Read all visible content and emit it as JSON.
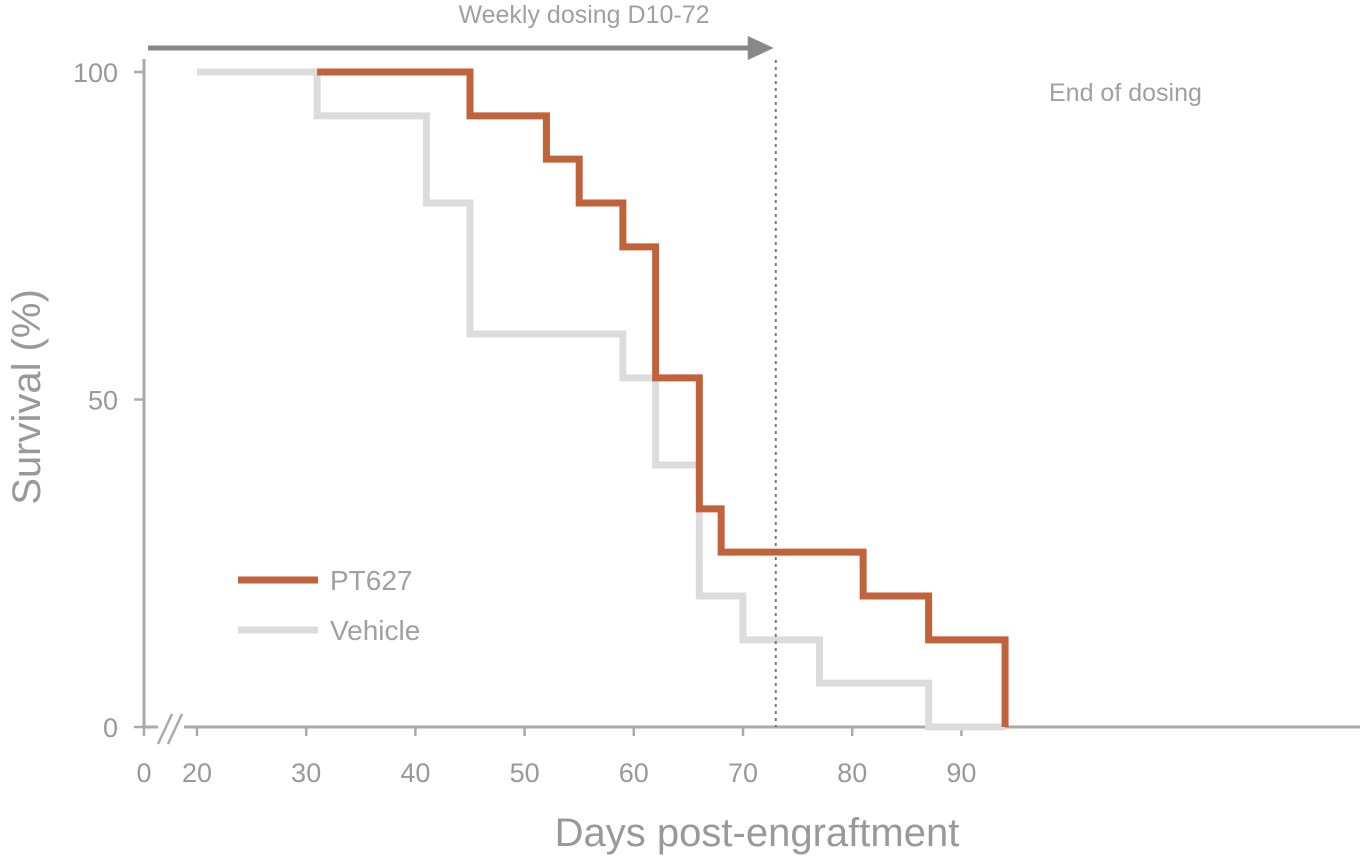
{
  "chart_data": {
    "type": "line",
    "subtype": "kaplan-meier step",
    "title": "",
    "xlabel": "Days post-engraftment",
    "ylabel": "Survival (%)",
    "xlim": [
      20,
      95
    ],
    "ylim": [
      0,
      100
    ],
    "x_axis_break": true,
    "x_ticks": [
      {
        "value": 0,
        "label": "0"
      },
      {
        "value": 20,
        "label": "20"
      },
      {
        "value": 30,
        "label": "30"
      },
      {
        "value": 40,
        "label": "40"
      },
      {
        "value": 50,
        "label": "50"
      },
      {
        "value": 60,
        "label": "60"
      },
      {
        "value": 70,
        "label": "70"
      },
      {
        "value": 80,
        "label": "80"
      },
      {
        "value": 90,
        "label": "90"
      }
    ],
    "y_ticks": [
      {
        "value": 0,
        "label": "0"
      },
      {
        "value": 50,
        "label": "50"
      },
      {
        "value": 100,
        "label": "100"
      }
    ],
    "grid": false,
    "legend_position": "lower-left",
    "series": [
      {
        "name": "PT627",
        "color": "#c0623a",
        "steps": [
          {
            "x": 31,
            "y": 100
          },
          {
            "x": 45,
            "y": 93.3
          },
          {
            "x": 52,
            "y": 86.7
          },
          {
            "x": 55,
            "y": 80
          },
          {
            "x": 59,
            "y": 73.3
          },
          {
            "x": 62,
            "y": 53.3
          },
          {
            "x": 66,
            "y": 33.3
          },
          {
            "x": 68,
            "y": 26.7
          },
          {
            "x": 81,
            "y": 20
          },
          {
            "x": 87,
            "y": 13.3
          },
          {
            "x": 94,
            "y": 0
          }
        ]
      },
      {
        "name": "Vehicle",
        "color": "#dcdcdc",
        "steps": [
          {
            "x": 20,
            "y": 100
          },
          {
            "x": 31,
            "y": 93.3
          },
          {
            "x": 41,
            "y": 80
          },
          {
            "x": 45,
            "y": 60
          },
          {
            "x": 59,
            "y": 53.3
          },
          {
            "x": 62,
            "y": 40
          },
          {
            "x": 66,
            "y": 20
          },
          {
            "x": 70,
            "y": 13.3
          },
          {
            "x": 77,
            "y": 6.7
          },
          {
            "x": 87,
            "y": 0
          },
          {
            "x": 94,
            "y": 0
          }
        ]
      }
    ],
    "annotations": {
      "dosing_arrow": {
        "label": "Weekly dosing D10-72",
        "x_end": 73
      },
      "end_of_dosing": {
        "label": "End of dosing",
        "x": 73
      }
    },
    "colors": {
      "axis": "#aaaaaa",
      "tick_label": "#999999",
      "arrow": "#888888",
      "dotted_line": "#777777"
    }
  }
}
